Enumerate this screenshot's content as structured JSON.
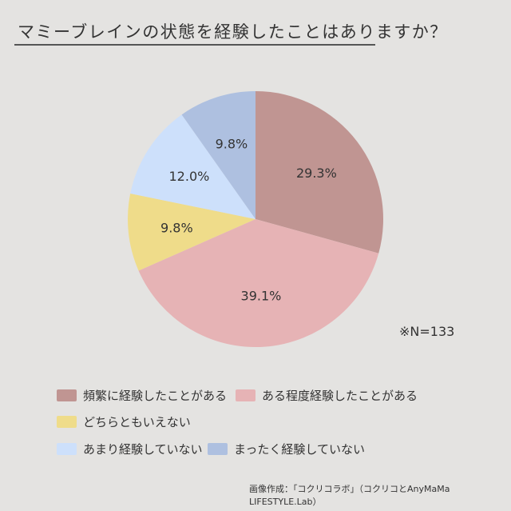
{
  "chart_data": {
    "type": "pie",
    "title": "マミーブレインの状態を経験したことはありますか？",
    "note": "※N=133",
    "start": "top, clockwise",
    "legend_placement": "bottom",
    "slices": [
      {
        "label": "頻繁に経験したことがある",
        "value": 29.3,
        "text": "29.3%",
        "color": "#c09592"
      },
      {
        "label": "ある程度経験したことがある",
        "value": 39.1,
        "text": "39.1%",
        "color": "#e6b3b5"
      },
      {
        "label": "どちらともいえない",
        "value": 9.8,
        "text": "9.8%",
        "color": "#efdc8a"
      },
      {
        "label": "あまり経験していない",
        "value": 12.0,
        "text": "12.0%",
        "color": "#cde0fb"
      },
      {
        "label": "まったく経験していない",
        "value": 9.8,
        "text": "9.8%",
        "color": "#aec0e0"
      }
    ]
  },
  "credit": "画像作成：「コクリコラボ」（コクリコとAnyMaMa LIFESTYLE.Lab）"
}
